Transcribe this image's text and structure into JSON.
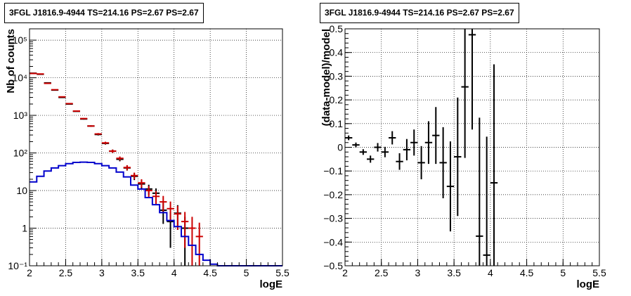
{
  "chart_data": [
    {
      "type": "scatter",
      "title": "3FGL J1816.9-4944 TS=214.16 PS=2.67 PS=2.67",
      "xlabel": "logE",
      "ylabel": "Nb of counts",
      "xlim": [
        2,
        5.5
      ],
      "ylim": [
        0.1,
        200000
      ],
      "yscale": "log",
      "grid": true,
      "xticks": [
        2,
        2.5,
        3,
        3.5,
        4,
        4.5,
        5,
        5.5
      ],
      "xtick_labels": [
        "2",
        "2.5",
        "3",
        "3.5",
        "4",
        "4.5",
        "5",
        "5.5"
      ],
      "yticks": [
        0.1,
        1,
        10,
        100,
        1000,
        10000,
        100000
      ],
      "ytick_labels": [
        "10⁻¹",
        "1",
        "10",
        "10²",
        "10³",
        "10⁴",
        "10⁵"
      ],
      "bin_edges": [
        2.0,
        2.1,
        2.2,
        2.3,
        2.4,
        2.5,
        2.6,
        2.7,
        2.8,
        2.9,
        3.0,
        3.1,
        3.2,
        3.3,
        3.4,
        3.5,
        3.6,
        3.7,
        3.8,
        3.9,
        4.0,
        4.1,
        4.2,
        4.3,
        4.4,
        4.5,
        4.6,
        4.7,
        4.8,
        4.9,
        5.0,
        5.1,
        5.2,
        5.3,
        5.4,
        5.5
      ],
      "series": [
        {
          "style": "errorbar",
          "color": "#000000",
          "x": [
            2.05,
            2.15,
            2.25,
            2.35,
            2.45,
            2.55,
            2.65,
            2.75,
            2.85,
            2.95,
            3.05,
            3.15,
            3.25,
            3.35,
            3.45,
            3.55,
            3.65,
            3.75,
            3.85,
            3.95,
            4.05,
            4.15
          ],
          "y": [
            13200,
            12400,
            7300,
            4700,
            3000,
            2000,
            1280,
            800,
            520,
            310,
            180,
            112,
            68,
            40,
            24,
            15,
            11,
            8.5,
            3.0,
            1.5,
            2.5,
            1.0
          ],
          "yerr_low": [
            115,
            110,
            85,
            68,
            55,
            45,
            36,
            28,
            23,
            18,
            13,
            11,
            8,
            6,
            5,
            4,
            3.3,
            2.9,
            1.7,
            1.2,
            1.6,
            1.0
          ],
          "yerr_high": [
            115,
            110,
            85,
            68,
            55,
            45,
            36,
            28,
            23,
            18,
            13,
            11,
            8,
            6,
            5,
            4,
            3.3,
            2.9,
            1.7,
            1.2,
            1.6,
            1.0
          ]
        },
        {
          "style": "errorbar",
          "color": "#cc0000",
          "x": [
            2.05,
            2.15,
            2.25,
            2.35,
            2.45,
            2.55,
            2.65,
            2.75,
            2.85,
            2.95,
            3.05,
            3.15,
            3.25,
            3.35,
            3.45,
            3.55,
            3.65,
            3.75,
            3.85,
            3.95,
            4.05,
            4.15,
            4.25,
            4.35
          ],
          "y": [
            13000,
            12600,
            7100,
            4800,
            3100,
            2050,
            1300,
            820,
            520,
            320,
            185,
            112,
            72,
            41,
            25,
            16,
            10,
            7,
            5,
            3.3,
            2.4,
            1.5,
            1.0,
            0.6
          ],
          "yerr_low": [
            115,
            112,
            84,
            69,
            56,
            45,
            36,
            29,
            23,
            18,
            14,
            11,
            8.5,
            6.4,
            5,
            4,
            3.2,
            2.6,
            2.2,
            1.8,
            1.5,
            1.2,
            1.0,
            0.7
          ],
          "yerr_high": [
            115,
            112,
            84,
            69,
            56,
            45,
            36,
            29,
            23,
            18,
            14,
            11,
            8.5,
            6.4,
            5,
            4,
            3.2,
            2.6,
            2.2,
            1.8,
            1.5,
            1.2,
            1.0,
            0.8
          ]
        },
        {
          "style": "step",
          "color": "#0000cc",
          "values": [
            17,
            24,
            33,
            40,
            46,
            52,
            56,
            57,
            56,
            52,
            46,
            40,
            31,
            23,
            14,
            11,
            6.5,
            4.2,
            2.6,
            1.6,
            1.1,
            0.6,
            0.35,
            0.2,
            0.14,
            0.11,
            0.1,
            0.1,
            0.1,
            0.1,
            0.1,
            0.1,
            0.1,
            0.1,
            0.1
          ]
        }
      ]
    },
    {
      "type": "scatter",
      "title": "3FGL J1816.9-4944 TS=214.16 PS=2.67 PS=2.67",
      "xlabel": "logE",
      "ylabel": "(data-model)/model",
      "xlim": [
        2,
        5.5
      ],
      "ylim": [
        -0.5,
        0.5
      ],
      "grid": true,
      "xticks": [
        2,
        2.5,
        3,
        3.5,
        4,
        4.5,
        5,
        5.5
      ],
      "xtick_labels": [
        "2",
        "2.5",
        "3",
        "3.5",
        "4",
        "4.5",
        "5",
        "5.5"
      ],
      "yticks": [
        -0.5,
        -0.4,
        -0.3,
        -0.2,
        -0.1,
        0,
        0.1,
        0.2,
        0.3,
        0.4,
        0.5
      ],
      "ytick_labels": [
        "−0.5",
        "−0.4",
        "−0.3",
        "−0.2",
        "−0.1",
        "0",
        "0.1",
        "0.2",
        "0.3",
        "0.4",
        "0.5"
      ],
      "series": [
        {
          "style": "errorbar",
          "color": "#000000",
          "x": [
            2.05,
            2.15,
            2.25,
            2.35,
            2.45,
            2.55,
            2.65,
            2.75,
            2.85,
            2.95,
            3.05,
            3.15,
            3.25,
            3.35,
            3.45,
            3.55,
            3.65,
            3.75,
            3.85,
            3.95,
            4.05
          ],
          "y": [
            0.04,
            0.01,
            -0.02,
            -0.05,
            0.0,
            -0.02,
            0.04,
            -0.06,
            -0.01,
            0.02,
            -0.065,
            0.02,
            0.05,
            -0.065,
            -0.165,
            -0.04,
            0.255,
            0.475,
            -0.375,
            -0.455,
            -0.15
          ],
          "yerr_low": [
            0.01,
            0.01,
            0.012,
            0.015,
            0.018,
            0.022,
            0.028,
            0.035,
            0.045,
            0.055,
            0.07,
            0.09,
            0.12,
            0.15,
            0.19,
            0.25,
            0.3,
            0.4,
            0.5,
            0.5,
            0.5
          ],
          "yerr_high": [
            0.01,
            0.01,
            0.012,
            0.015,
            0.018,
            0.022,
            0.028,
            0.035,
            0.045,
            0.055,
            0.07,
            0.09,
            0.12,
            0.15,
            0.19,
            0.25,
            0.3,
            0.4,
            0.5,
            0.5,
            0.5
          ]
        }
      ]
    }
  ]
}
